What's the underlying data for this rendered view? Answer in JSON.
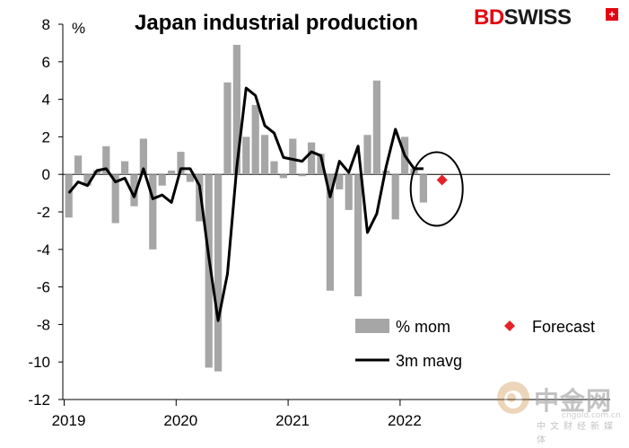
{
  "brand": {
    "part1": "BD",
    "part2": "SWISS",
    "mark": "+"
  },
  "watermark": {
    "name": "中金网",
    "sub": "中文财经新媒体",
    "url": "cngold.com.cn"
  },
  "chart_data": {
    "type": "bar",
    "title": "Japan industrial production",
    "unit": "%",
    "ylim": [
      -12,
      8
    ],
    "yticks": [
      8,
      6,
      4,
      2,
      0,
      -2,
      -4,
      -6,
      -8,
      -10,
      -12
    ],
    "x_year_labels": [
      "2019",
      "2020",
      "2021",
      "2022"
    ],
    "x_months": [
      "2019-01",
      "2019-02",
      "2019-03",
      "2019-04",
      "2019-05",
      "2019-06",
      "2019-07",
      "2019-08",
      "2019-09",
      "2019-10",
      "2019-11",
      "2019-12",
      "2020-01",
      "2020-02",
      "2020-03",
      "2020-04",
      "2020-05",
      "2020-06",
      "2020-07",
      "2020-08",
      "2020-09",
      "2020-10",
      "2020-11",
      "2020-12",
      "2021-01",
      "2021-02",
      "2021-03",
      "2021-04",
      "2021-05",
      "2021-06",
      "2021-07",
      "2021-08",
      "2021-09",
      "2021-10",
      "2021-11",
      "2021-12",
      "2022-01",
      "2022-02",
      "2022-03",
      "2022-04",
      "2022-05",
      "2022-06",
      "2022-07",
      "2022-08"
    ],
    "grid": false,
    "legend_position": "bottom-right",
    "series": [
      {
        "name": "% mom",
        "kind": "bar",
        "color": "#a6a6a6",
        "values": [
          -2.3,
          1.0,
          -0.6,
          0.2,
          1.5,
          -2.6,
          0.7,
          -1.7,
          1.9,
          -4.0,
          -0.6,
          0.2,
          1.2,
          -0.4,
          -2.5,
          -10.3,
          -10.5,
          4.9,
          6.9,
          2.0,
          3.7,
          2.1,
          0.7,
          -0.2,
          1.9,
          -0.1,
          1.7,
          1.1,
          -6.2,
          -0.8,
          -1.9,
          -6.5,
          2.1,
          5.0,
          0.2,
          -2.4,
          2.0,
          0.3,
          -1.5,
          null,
          null,
          null,
          null,
          null
        ]
      },
      {
        "name": "3m mavg",
        "kind": "line",
        "color": "#000000",
        "values": [
          -1.0,
          -0.4,
          -0.6,
          0.2,
          0.3,
          -0.4,
          -0.2,
          -1.2,
          0.3,
          -1.3,
          -1.1,
          -1.5,
          0.3,
          0.3,
          -0.6,
          -4.4,
          -7.8,
          -5.3,
          0.4,
          4.6,
          4.2,
          2.6,
          2.2,
          0.9,
          0.8,
          0.7,
          1.2,
          1.0,
          -1.2,
          0.7,
          0.1,
          1.5,
          -3.1,
          -2.1,
          0.4,
          2.4,
          1.0,
          0.3,
          0.3,
          null,
          null,
          null,
          null,
          null
        ]
      },
      {
        "name": "Forecast",
        "kind": "marker",
        "color": "#e52228",
        "x_index": 40,
        "value": -0.3
      }
    ],
    "annotation": {
      "kind": "circle",
      "around_series": "Forecast"
    }
  }
}
